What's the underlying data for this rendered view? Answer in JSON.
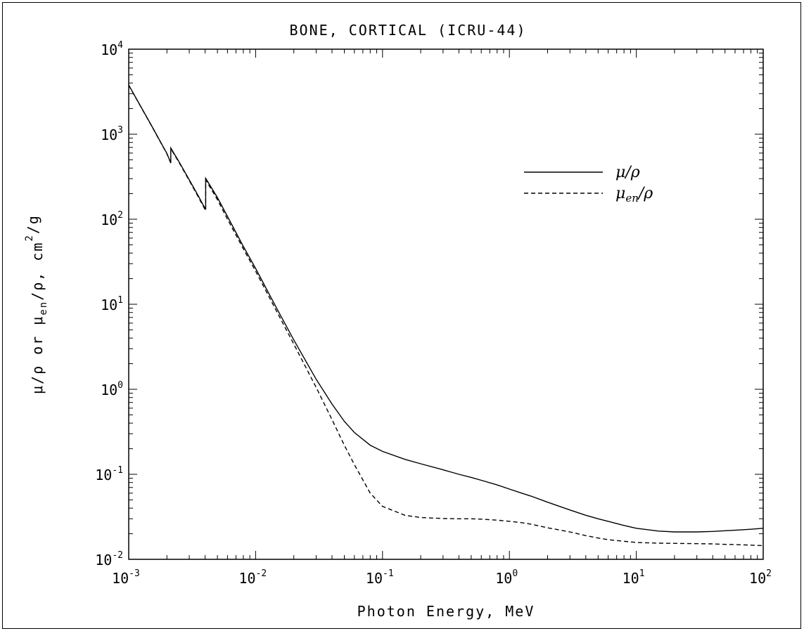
{
  "chart_data": {
    "type": "line",
    "title": "BONE, CORTICAL (ICRU-44)",
    "xlabel": "Photon Energy, MeV",
    "ylabel": "μ/ρ or μen/ρ, cm²/g",
    "x_scale": "log",
    "y_scale": "log",
    "xlim": [
      0.001,
      100
    ],
    "ylim": [
      0.01,
      10000
    ],
    "x_ticks": [
      {
        "base": "10",
        "exp": "-3",
        "value": 0.001
      },
      {
        "base": "10",
        "exp": "-2",
        "value": 0.01
      },
      {
        "base": "10",
        "exp": "-1",
        "value": 0.1
      },
      {
        "base": "10",
        "exp": "0",
        "value": 1
      },
      {
        "base": "10",
        "exp": "1",
        "value": 10
      },
      {
        "base": "10",
        "exp": "2",
        "value": 100
      }
    ],
    "y_ticks": [
      {
        "base": "10",
        "exp": "-2",
        "value": 0.01
      },
      {
        "base": "10",
        "exp": "-1",
        "value": 0.1
      },
      {
        "base": "10",
        "exp": "0",
        "value": 1
      },
      {
        "base": "10",
        "exp": "1",
        "value": 10
      },
      {
        "base": "10",
        "exp": "2",
        "value": 100
      },
      {
        "base": "10",
        "exp": "3",
        "value": 1000
      },
      {
        "base": "10",
        "exp": "4",
        "value": 10000
      }
    ],
    "legend_position": "top-right",
    "grid": false,
    "series": [
      {
        "name": "μ/ρ",
        "style": "solid",
        "points": [
          [
            0.001,
            3780
          ],
          [
            0.0015,
            1290
          ],
          [
            0.002,
            594
          ],
          [
            0.002145,
            460
          ],
          [
            0.002145,
            687
          ],
          [
            0.0025,
            470
          ],
          [
            0.003,
            290
          ],
          [
            0.0035,
            193
          ],
          [
            0.004038,
            130
          ],
          [
            0.004038,
            303
          ],
          [
            0.005,
            180
          ],
          [
            0.006,
            108
          ],
          [
            0.008,
            48
          ],
          [
            0.01,
            26.4
          ],
          [
            0.015,
            8.4
          ],
          [
            0.02,
            3.8
          ],
          [
            0.03,
            1.31
          ],
          [
            0.04,
            0.67
          ],
          [
            0.05,
            0.42
          ],
          [
            0.06,
            0.31
          ],
          [
            0.08,
            0.22
          ],
          [
            0.1,
            0.186
          ],
          [
            0.15,
            0.15
          ],
          [
            0.2,
            0.133
          ],
          [
            0.3,
            0.113
          ],
          [
            0.4,
            0.1
          ],
          [
            0.5,
            0.092
          ],
          [
            0.6,
            0.085
          ],
          [
            0.8,
            0.075
          ],
          [
            1,
            0.067
          ],
          [
            1.25,
            0.06
          ],
          [
            1.5,
            0.055
          ],
          [
            2,
            0.047
          ],
          [
            3,
            0.038
          ],
          [
            4,
            0.033
          ],
          [
            5,
            0.03
          ],
          [
            6,
            0.028
          ],
          [
            8,
            0.025
          ],
          [
            10,
            0.0232
          ],
          [
            15,
            0.0215
          ],
          [
            20,
            0.021
          ],
          [
            30,
            0.021
          ],
          [
            40,
            0.0213
          ],
          [
            50,
            0.0217
          ],
          [
            60,
            0.022
          ],
          [
            80,
            0.0226
          ],
          [
            100,
            0.0232
          ]
        ]
      },
      {
        "name": "μen/ρ",
        "style": "dashed",
        "points": [
          [
            0.001,
            3770
          ],
          [
            0.0015,
            1280
          ],
          [
            0.002,
            588
          ],
          [
            0.002145,
            456
          ],
          [
            0.002145,
            676
          ],
          [
            0.0025,
            462
          ],
          [
            0.003,
            284
          ],
          [
            0.0035,
            188
          ],
          [
            0.004038,
            126
          ],
          [
            0.004038,
            290
          ],
          [
            0.005,
            170
          ],
          [
            0.006,
            100
          ],
          [
            0.008,
            45
          ],
          [
            0.01,
            24.5
          ],
          [
            0.015,
            7.7
          ],
          [
            0.02,
            3.4
          ],
          [
            0.03,
            1.05
          ],
          [
            0.04,
            0.44
          ],
          [
            0.05,
            0.22
          ],
          [
            0.06,
            0.13
          ],
          [
            0.08,
            0.06
          ],
          [
            0.1,
            0.042
          ],
          [
            0.15,
            0.033
          ],
          [
            0.2,
            0.031
          ],
          [
            0.3,
            0.0302
          ],
          [
            0.4,
            0.03
          ],
          [
            0.5,
            0.03
          ],
          [
            0.6,
            0.0297
          ],
          [
            0.8,
            0.0289
          ],
          [
            1,
            0.028
          ],
          [
            1.25,
            0.027
          ],
          [
            1.5,
            0.0258
          ],
          [
            2,
            0.0235
          ],
          [
            3,
            0.021
          ],
          [
            4,
            0.019
          ],
          [
            5,
            0.0178
          ],
          [
            6,
            0.017
          ],
          [
            8,
            0.0163
          ],
          [
            10,
            0.0158
          ],
          [
            15,
            0.0155
          ],
          [
            20,
            0.0154
          ],
          [
            30,
            0.0153
          ],
          [
            40,
            0.0152
          ],
          [
            50,
            0.015
          ],
          [
            60,
            0.0149
          ],
          [
            80,
            0.0147
          ],
          [
            100,
            0.0145
          ]
        ]
      }
    ]
  }
}
